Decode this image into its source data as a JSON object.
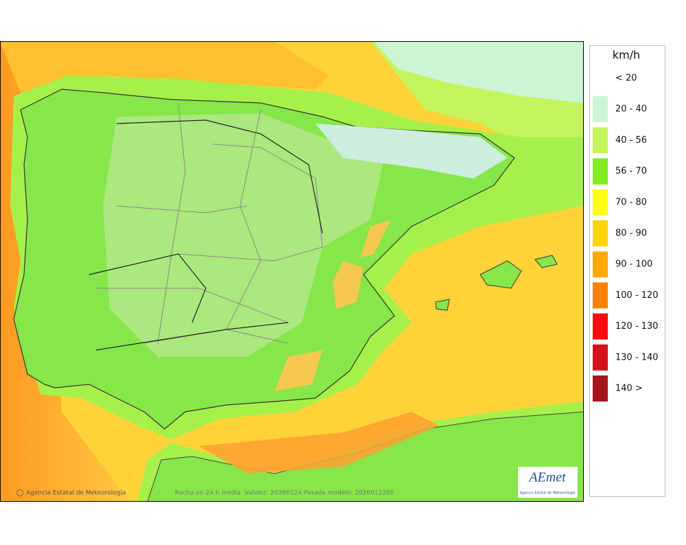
{
  "map": {
    "attribution": "Agencia Estatal de Meteorología",
    "caption": "Racha en 24 h media  Validez: 20260124 Pasada modelo: 2026012200",
    "logo": {
      "name": "AEmet",
      "subtitle": "Agencia Estatal de Meteorología"
    }
  },
  "legend": {
    "title": "km/h",
    "items": [
      {
        "label": "< 20"
      },
      {
        "label": "20 - 40",
        "color": "#ccf5d6"
      },
      {
        "label": "40 - 56",
        "color": "#c4f55c"
      },
      {
        "label": "56 - 70",
        "color": "#80ee22"
      },
      {
        "label": "70 - 80",
        "color": "#ffff10"
      },
      {
        "label": "80 - 90",
        "color": "#ffd400"
      },
      {
        "label": "90 - 100",
        "color": "#ffaa00"
      },
      {
        "label": "100 - 120",
        "color": "#ff8000"
      },
      {
        "label": "120 - 130",
        "color": "#ff0a0a"
      },
      {
        "label": "130 - 140",
        "color": "#d6101c"
      },
      {
        "label": "140 >",
        "color": "#a8141e"
      }
    ]
  }
}
